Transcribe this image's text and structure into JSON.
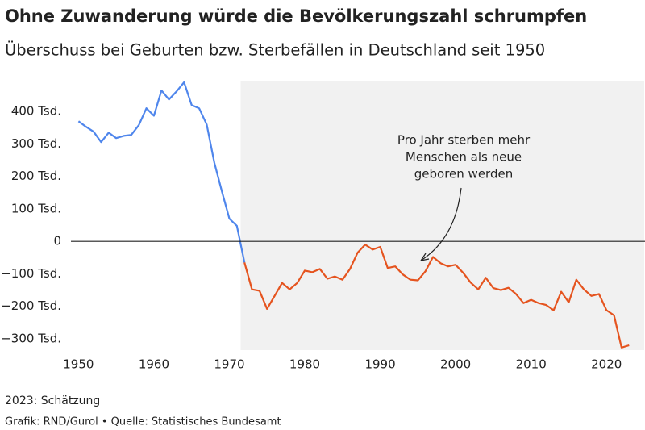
{
  "chart_data": {
    "type": "line",
    "title": "Ohne Zuwanderung würde die Bevölkerungszahl schrumpfen",
    "subtitle": "Überschuss bei Geburten bzw. Sterbefällen in Deutschland seit 1950",
    "annotation": [
      "Pro Jahr sterben mehr",
      "Menschen als neue",
      "geboren werden"
    ],
    "notes": [
      "2023: Schätzung",
      "Grafik: RND/Gurol • Quelle: Statistisches Bundesamt"
    ],
    "x": [
      1950,
      1951,
      1952,
      1953,
      1954,
      1955,
      1956,
      1957,
      1958,
      1959,
      1960,
      1961,
      1962,
      1963,
      1964,
      1965,
      1966,
      1967,
      1968,
      1969,
      1970,
      1971,
      1972,
      1973,
      1974,
      1975,
      1976,
      1977,
      1978,
      1979,
      1980,
      1981,
      1982,
      1983,
      1984,
      1985,
      1986,
      1987,
      1988,
      1989,
      1990,
      1991,
      1992,
      1993,
      1994,
      1995,
      1996,
      1997,
      1998,
      1999,
      2000,
      2001,
      2002,
      2003,
      2004,
      2005,
      2006,
      2007,
      2008,
      2009,
      2010,
      2011,
      2012,
      2013,
      2014,
      2015,
      2016,
      2017,
      2018,
      2019,
      2020,
      2021,
      2022,
      2023
    ],
    "series": [
      {
        "color": "#4f86ec",
        "values": [
          370,
          353,
          338,
          306,
          335,
          318,
          325,
          328,
          358,
          410,
          387,
          465,
          437,
          462,
          490,
          420,
          410,
          360,
          243,
          155,
          70,
          48,
          -65,
          null,
          null,
          null,
          null,
          null,
          null,
          null,
          null,
          null,
          null,
          null,
          null,
          null,
          null,
          null,
          null,
          null,
          null,
          null,
          null,
          null,
          null,
          null,
          null,
          null,
          null,
          null,
          null,
          null,
          null,
          null,
          null,
          null,
          null,
          null,
          null,
          null,
          null,
          null,
          null,
          null,
          null,
          null,
          null,
          null,
          null,
          null,
          null,
          null,
          null,
          null
        ]
      },
      {
        "color": "#e5541f",
        "values": [
          null,
          null,
          null,
          null,
          null,
          null,
          null,
          null,
          null,
          null,
          null,
          null,
          null,
          null,
          null,
          null,
          null,
          null,
          null,
          null,
          null,
          null,
          -65,
          -148,
          -152,
          -208,
          -168,
          -128,
          -148,
          -128,
          -90,
          -95,
          -85,
          -115,
          -108,
          -118,
          -85,
          -35,
          -10,
          -25,
          -17,
          -82,
          -77,
          -102,
          -118,
          -120,
          -92,
          -48,
          -67,
          -77,
          -72,
          -97,
          -127,
          -148,
          -112,
          -144,
          -150,
          -143,
          -162,
          -190,
          -180,
          -190,
          -196,
          -212,
          -155,
          -188,
          -118,
          -148,
          -168,
          -162,
          -212,
          -228,
          -327,
          -320
        ]
      }
    ],
    "xlim": [
      1949,
      2025
    ],
    "xticks": [
      1950,
      1960,
      1970,
      1980,
      1990,
      2000,
      2010,
      2020
    ],
    "ylim": [
      -335,
      495
    ],
    "yticks": [
      {
        "value": -300,
        "label": "−300 Tsd."
      },
      {
        "value": -200,
        "label": "−200 Tsd."
      },
      {
        "value": -100,
        "label": "−100 Tsd."
      },
      0,
      {
        "value": 100,
        "label": "100 Tsd."
      },
      {
        "value": 200,
        "label": "200 Tsd."
      },
      {
        "value": 300,
        "label": "300 Tsd."
      },
      {
        "value": 400,
        "label": "400 Tsd."
      }
    ],
    "zero_line": true,
    "shaded_xrange": [
      1971.5,
      2025
    ],
    "shade_color": "#f1f1f1"
  }
}
